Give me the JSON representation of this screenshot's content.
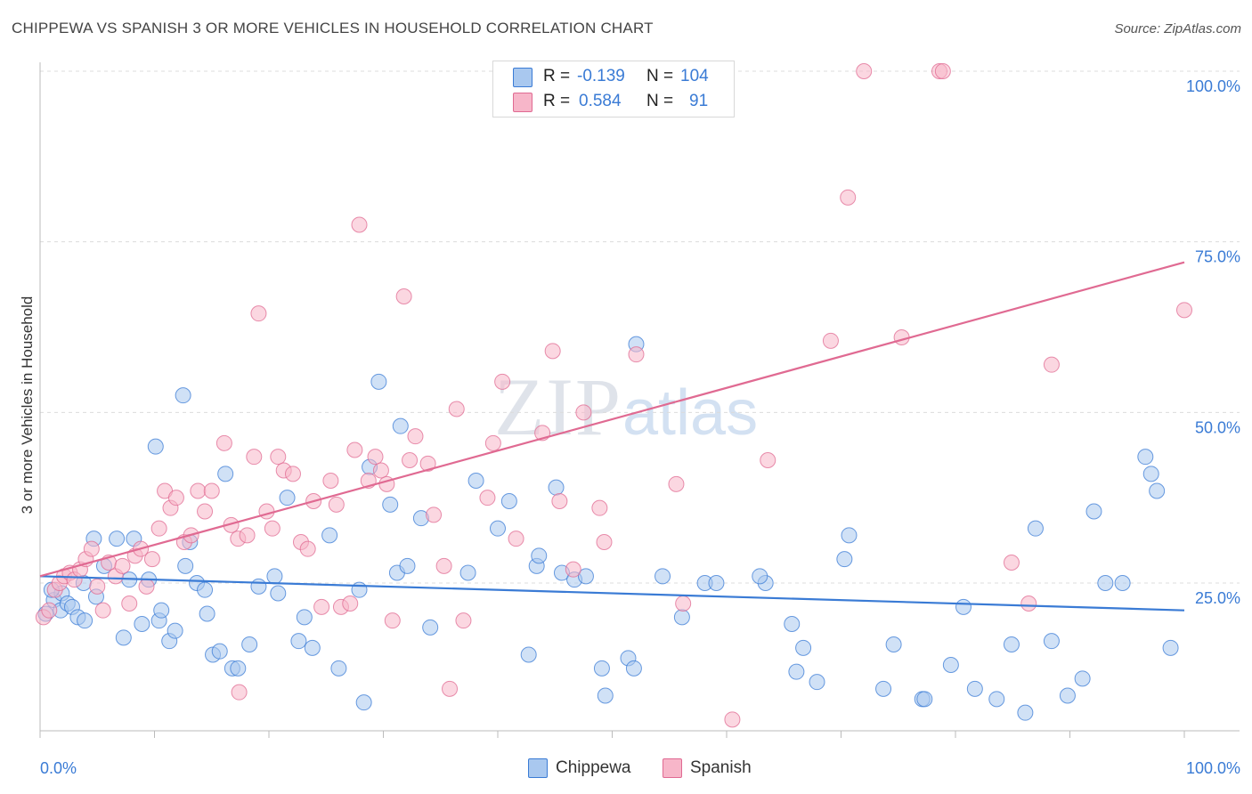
{
  "header": {
    "title": "CHIPPEWA VS SPANISH 3 OR MORE VEHICLES IN HOUSEHOLD CORRELATION CHART",
    "source": "Source: ZipAtlas.com"
  },
  "watermark": {
    "part1": "ZIP",
    "part2": "atlas"
  },
  "legend": {
    "rows": [
      {
        "r_label": "R =",
        "r_value": "-0.139",
        "n_label": "N =",
        "n_value": "104",
        "color": "#a9c8ef"
      },
      {
        "r_label": "R =",
        "r_value": "0.584",
        "n_label": "N =",
        "n_value": "91",
        "color": "#f7b6c9"
      }
    ]
  },
  "bottom_legend": [
    {
      "label": "Chippewa",
      "color": "#a9c8ef"
    },
    {
      "label": "Spanish",
      "color": "#f7b6c9"
    }
  ],
  "chart_data": {
    "type": "scatter",
    "title": "CHIPPEWA VS SPANISH 3 OR MORE VEHICLES IN HOUSEHOLD CORRELATION CHART",
    "xlabel": "",
    "ylabel": "3 or more Vehicles in Household",
    "xlim": [
      0,
      100
    ],
    "ylim": [
      0,
      105
    ],
    "x_tick_labels": [
      "0.0%",
      "100.0%"
    ],
    "y_ticks": [
      25,
      50,
      75,
      100
    ],
    "y_tick_labels": [
      "25.0%",
      "50.0%",
      "75.0%",
      "100.0%"
    ],
    "grid": true,
    "legend_position": "top-center",
    "colors": {
      "chippewa": "#3a7bd5",
      "chippewa_fill": "#a9c8ef",
      "spanish": "#e06a92",
      "spanish_fill": "#f7b6c9",
      "axis_text": "#3a7bd5"
    },
    "series": [
      {
        "name": "Chippewa",
        "trend": {
          "x": [
            0,
            100
          ],
          "y": [
            26.0,
            21.0
          ]
        },
        "points": [
          [
            0.5,
            20.5
          ],
          [
            1.2,
            22.5
          ],
          [
            1.8,
            21.0
          ],
          [
            1.9,
            23.5
          ],
          [
            2.4,
            22.0
          ],
          [
            2.8,
            21.5
          ],
          [
            3.3,
            20.0
          ],
          [
            3.8,
            25.0
          ],
          [
            3.9,
            19.5
          ],
          [
            4.9,
            23.0
          ],
          [
            4.7,
            31.5
          ],
          [
            5.6,
            27.5
          ],
          [
            6.7,
            31.5
          ],
          [
            7.3,
            17.0
          ],
          [
            7.8,
            25.5
          ],
          [
            8.2,
            31.5
          ],
          [
            8.9,
            19.0
          ],
          [
            9.5,
            25.5
          ],
          [
            10.1,
            45.0
          ],
          [
            10.4,
            19.5
          ],
          [
            10.6,
            21.0
          ],
          [
            11.3,
            16.5
          ],
          [
            11.8,
            18.0
          ],
          [
            12.5,
            52.5
          ],
          [
            12.7,
            27.5
          ],
          [
            13.1,
            31.0
          ],
          [
            13.7,
            25.0
          ],
          [
            14.4,
            24.0
          ],
          [
            14.6,
            20.5
          ],
          [
            15.1,
            14.5
          ],
          [
            15.7,
            15.0
          ],
          [
            16.2,
            41.0
          ],
          [
            16.8,
            12.5
          ],
          [
            17.3,
            12.5
          ],
          [
            18.3,
            16.0
          ],
          [
            19.1,
            24.5
          ],
          [
            20.5,
            26.0
          ],
          [
            20.8,
            23.5
          ],
          [
            21.6,
            37.5
          ],
          [
            22.6,
            16.5
          ],
          [
            23.1,
            20.0
          ],
          [
            23.8,
            15.5
          ],
          [
            25.3,
            32.0
          ],
          [
            26.1,
            12.5
          ],
          [
            27.9,
            24.0
          ],
          [
            28.3,
            7.5
          ],
          [
            28.8,
            42.0
          ],
          [
            29.6,
            54.5
          ],
          [
            30.6,
            36.5
          ],
          [
            31.2,
            26.5
          ],
          [
            31.5,
            48.0
          ],
          [
            32.1,
            27.5
          ],
          [
            33.3,
            34.5
          ],
          [
            34.1,
            18.5
          ],
          [
            37.4,
            26.5
          ],
          [
            38.1,
            40.0
          ],
          [
            40.0,
            33.0
          ],
          [
            41.0,
            37.0
          ],
          [
            42.7,
            14.5
          ],
          [
            43.4,
            27.5
          ],
          [
            43.6,
            29.0
          ],
          [
            45.1,
            39.0
          ],
          [
            45.6,
            26.5
          ],
          [
            46.7,
            25.5
          ],
          [
            47.7,
            26.0
          ],
          [
            49.1,
            12.5
          ],
          [
            49.4,
            8.5
          ],
          [
            51.4,
            14.0
          ],
          [
            51.9,
            12.5
          ],
          [
            52.1,
            60.0
          ],
          [
            54.4,
            26.0
          ],
          [
            56.1,
            20.0
          ],
          [
            58.1,
            25.0
          ],
          [
            59.1,
            25.0
          ],
          [
            63.4,
            25.0
          ],
          [
            65.7,
            19.0
          ],
          [
            66.7,
            15.5
          ],
          [
            66.1,
            12.0
          ],
          [
            67.9,
            10.5
          ],
          [
            70.3,
            28.5
          ],
          [
            70.7,
            32.0
          ],
          [
            73.7,
            9.5
          ],
          [
            74.6,
            16.0
          ],
          [
            77.1,
            8.0
          ],
          [
            77.3,
            8.0
          ],
          [
            79.6,
            13.0
          ],
          [
            80.7,
            21.5
          ],
          [
            81.7,
            9.5
          ],
          [
            83.6,
            8.0
          ],
          [
            84.9,
            16.0
          ],
          [
            86.1,
            6.0
          ],
          [
            87.0,
            33.0
          ],
          [
            88.4,
            16.5
          ],
          [
            89.8,
            8.5
          ],
          [
            91.1,
            11.0
          ],
          [
            92.1,
            35.5
          ],
          [
            93.1,
            25.0
          ],
          [
            94.6,
            25.0
          ],
          [
            96.6,
            43.5
          ],
          [
            97.1,
            41.0
          ],
          [
            97.6,
            38.5
          ],
          [
            98.8,
            15.5
          ],
          [
            1.0,
            24.0
          ],
          [
            62.9,
            26.0
          ]
        ]
      },
      {
        "name": "Spanish",
        "trend": {
          "x": [
            0,
            100
          ],
          "y": [
            26.0,
            72.0
          ]
        },
        "points": [
          [
            0.3,
            20.0
          ],
          [
            0.8,
            21.0
          ],
          [
            1.3,
            24.0
          ],
          [
            1.7,
            25.0
          ],
          [
            2.1,
            26.0
          ],
          [
            2.6,
            26.5
          ],
          [
            3.0,
            25.5
          ],
          [
            3.5,
            27.0
          ],
          [
            4.0,
            28.5
          ],
          [
            4.5,
            30.0
          ],
          [
            5.0,
            24.5
          ],
          [
            5.5,
            21.0
          ],
          [
            6.0,
            28.0
          ],
          [
            6.6,
            26.0
          ],
          [
            7.2,
            27.5
          ],
          [
            7.8,
            22.0
          ],
          [
            8.3,
            29.0
          ],
          [
            8.8,
            30.0
          ],
          [
            9.3,
            24.5
          ],
          [
            9.8,
            28.5
          ],
          [
            10.4,
            33.0
          ],
          [
            10.9,
            38.5
          ],
          [
            11.4,
            36.0
          ],
          [
            11.9,
            37.5
          ],
          [
            12.6,
            31.0
          ],
          [
            13.2,
            32.0
          ],
          [
            13.8,
            38.5
          ],
          [
            14.4,
            35.5
          ],
          [
            15.0,
            38.5
          ],
          [
            16.1,
            45.5
          ],
          [
            16.7,
            33.5
          ],
          [
            17.3,
            31.5
          ],
          [
            18.1,
            32.0
          ],
          [
            18.7,
            43.5
          ],
          [
            19.1,
            64.5
          ],
          [
            19.8,
            35.5
          ],
          [
            20.3,
            33.0
          ],
          [
            20.8,
            43.5
          ],
          [
            21.3,
            41.5
          ],
          [
            22.1,
            41.0
          ],
          [
            22.8,
            31.0
          ],
          [
            23.4,
            30.0
          ],
          [
            23.9,
            37.0
          ],
          [
            24.6,
            21.5
          ],
          [
            25.4,
            40.0
          ],
          [
            25.9,
            36.5
          ],
          [
            26.3,
            21.5
          ],
          [
            27.1,
            22.0
          ],
          [
            27.5,
            44.5
          ],
          [
            27.9,
            77.5
          ],
          [
            28.7,
            40.0
          ],
          [
            29.3,
            43.5
          ],
          [
            29.8,
            41.5
          ],
          [
            30.3,
            39.5
          ],
          [
            30.8,
            19.5
          ],
          [
            31.8,
            67.0
          ],
          [
            32.3,
            43.0
          ],
          [
            32.8,
            46.5
          ],
          [
            33.9,
            42.5
          ],
          [
            34.4,
            35.0
          ],
          [
            35.3,
            27.5
          ],
          [
            35.8,
            9.5
          ],
          [
            36.4,
            50.5
          ],
          [
            37.0,
            19.5
          ],
          [
            39.1,
            37.5
          ],
          [
            39.6,
            45.5
          ],
          [
            40.4,
            54.5
          ],
          [
            41.6,
            31.5
          ],
          [
            43.9,
            47.0
          ],
          [
            44.8,
            59.0
          ],
          [
            45.4,
            37.0
          ],
          [
            46.6,
            27.0
          ],
          [
            47.5,
            50.0
          ],
          [
            48.9,
            36.0
          ],
          [
            49.3,
            31.0
          ],
          [
            52.1,
            58.5
          ],
          [
            55.6,
            39.5
          ],
          [
            56.2,
            22.0
          ],
          [
            60.5,
            5.0
          ],
          [
            63.6,
            43.0
          ],
          [
            69.1,
            60.5
          ],
          [
            70.6,
            81.5
          ],
          [
            72.0,
            100.0
          ],
          [
            75.3,
            61.0
          ],
          [
            78.6,
            100.0
          ],
          [
            78.9,
            100.0
          ],
          [
            84.9,
            28.0
          ],
          [
            86.4,
            22.0
          ],
          [
            88.4,
            57.0
          ],
          [
            100.0,
            65.0
          ],
          [
            17.4,
            9.0
          ]
        ]
      }
    ]
  }
}
